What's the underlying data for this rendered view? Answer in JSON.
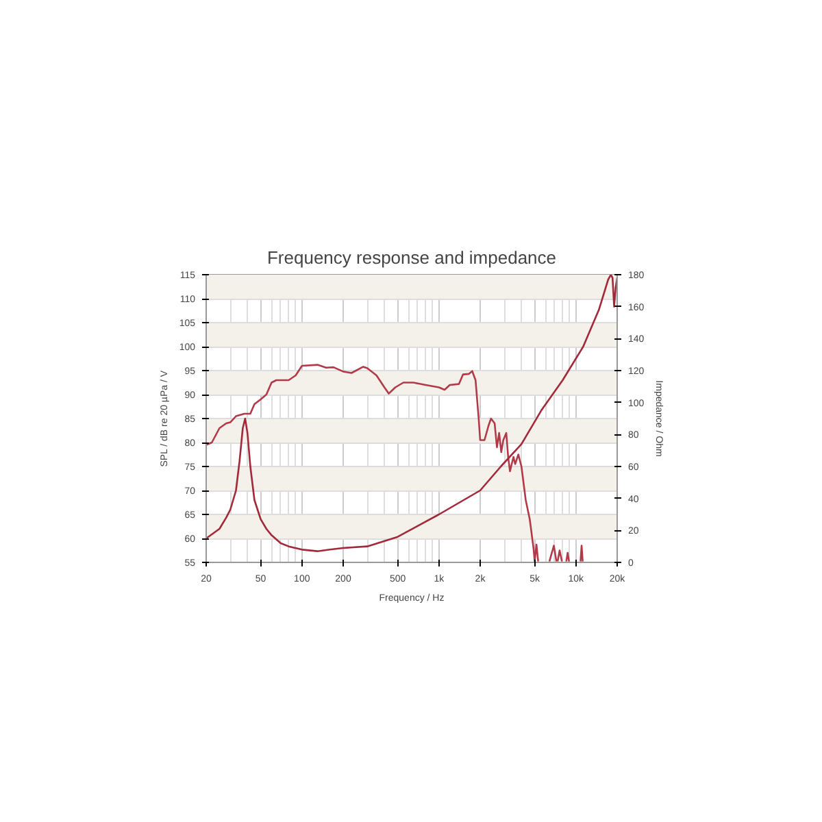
{
  "chart_data": {
    "type": "line",
    "title": "Frequency response and impedance",
    "xlabel": "Frequency / Hz",
    "ylabel": "SPL / dB re 20 µPa / V",
    "y2label": "Impedance / Ohm",
    "log": "x",
    "grid": true,
    "line_style": "solid",
    "xlim": [
      20,
      20000
    ],
    "xticks": [
      20,
      50,
      100,
      200,
      500,
      {
        "value": 1000,
        "label": "1k"
      },
      {
        "value": 2000,
        "label": "2k"
      },
      {
        "value": 5000,
        "label": "5k"
      },
      {
        "value": 10000,
        "label": "10k"
      },
      {
        "value": 20000,
        "label": "20k"
      }
    ],
    "ylim": [
      55,
      115
    ],
    "yticks": [
      55,
      60,
      65,
      70,
      75,
      80,
      85,
      90,
      95,
      100,
      105,
      110,
      115
    ],
    "y2lim": [
      0,
      180
    ],
    "y2ticks": [
      0,
      20,
      40,
      60,
      80,
      100,
      120,
      140,
      160,
      180
    ],
    "series": [
      {
        "color": "#b23a48",
        "x": [
          20,
          22,
          25,
          28,
          30,
          33,
          38,
          42,
          45,
          50,
          55,
          60,
          65,
          80,
          90,
          100,
          130,
          150,
          170,
          200,
          230,
          280,
          300,
          350,
          400,
          430,
          480,
          550,
          650,
          800,
          1000,
          1100,
          1200,
          1400,
          1500,
          1650,
          1750,
          1850,
          1950,
          2000,
          2150,
          2300,
          2400,
          2550,
          2650,
          2750,
          2850,
          2950,
          3100,
          3200,
          3300,
          3500,
          3600,
          3800,
          4000,
          4300,
          4600,
          4900,
          5000,
          5150,
          5300,
          5500,
          6400,
          6900,
          7200,
          7250,
          7350,
          7600,
          7900,
          8100,
          8500,
          8700,
          8900,
          9500,
          10800,
          11000,
          11200
        ],
        "values": [
          79.5,
          80,
          83,
          84,
          84.2,
          85.5,
          86,
          86,
          88,
          89,
          90,
          92.5,
          93,
          93,
          94,
          96,
          96.2,
          95.6,
          95.7,
          94.8,
          94.5,
          95.8,
          95.5,
          94,
          91.5,
          90.2,
          91.5,
          92.5,
          92.5,
          92,
          91.5,
          91,
          92,
          92.2,
          94.2,
          94.3,
          94.9,
          93,
          85,
          80.5,
          80.5,
          83.5,
          85,
          84,
          79,
          82,
          78,
          80.5,
          82,
          77,
          74,
          77,
          75.5,
          77.5,
          75,
          68,
          64,
          58,
          55.2,
          58.7,
          55.2,
          null,
          55.2,
          58.5,
          55.2,
          null,
          55.2,
          57.5,
          55.2,
          null,
          55.2,
          57,
          55.2,
          null,
          55.2,
          58.5,
          55.2
        ]
      },
      {
        "color": "#a3283a",
        "axis": "y2",
        "x": [
          20,
          25,
          28,
          30,
          33,
          35,
          37,
          38.5,
          40,
          42,
          45,
          50,
          55,
          60,
          70,
          80,
          100,
          130,
          160,
          200,
          300,
          500,
          1000,
          2000,
          2830,
          4000,
          5580,
          8000,
          11300,
          14700,
          17200,
          18000,
          18500,
          19000,
          19500,
          20000
        ],
        "values": [
          15,
          21,
          28,
          33,
          45,
          63,
          84,
          90,
          81,
          60,
          39,
          27,
          21,
          17,
          12,
          10,
          8,
          7,
          8,
          9,
          10,
          16,
          30,
          45,
          60,
          74,
          95,
          114,
          135,
          158,
          177,
          180,
          178,
          160,
          172,
          178
        ]
      }
    ]
  }
}
